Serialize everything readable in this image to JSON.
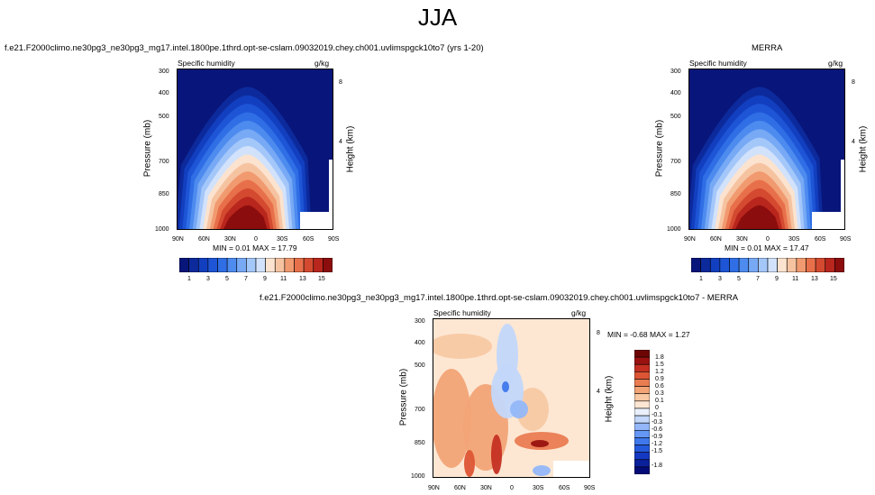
{
  "page": {
    "title": "JJA"
  },
  "colors": {
    "seq_palette": [
      "#08157a",
      "#0c2a9c",
      "#123fbf",
      "#1d55d6",
      "#2f6ee5",
      "#4d8bef",
      "#77a9f5",
      "#a4c7fa",
      "#d2e2fb",
      "#fbe3cf",
      "#f6c3a1",
      "#f19a70",
      "#e7704a",
      "#d44a30",
      "#b8261d",
      "#8c0d0d"
    ],
    "div_palette": [
      "#050c78",
      "#0b209b",
      "#1539c2",
      "#2559dc",
      "#3e78ec",
      "#6598f5",
      "#93b7f8",
      "#c3d7fa",
      "#e9f0fb",
      "#fde7d3",
      "#f8c9a4",
      "#f2a477",
      "#ea7c52",
      "#dd5534",
      "#c42f22",
      "#9a1210",
      "#6e0505"
    ]
  },
  "panels": [
    {
      "id": "model",
      "case_title": "f.e21.F2000climo.ne30pg3_ne30pg3_mg17.intel.1800pe.1thrd.opt-se-cslam.09032019.chey.ch001.uvlimspgck10to7 (yrs 1-20)",
      "field_label": "Specific humidity",
      "units": "g/kg",
      "stats": "MIN =  0.01   MAX =  17.79"
    },
    {
      "id": "obs",
      "case_title": "MERRA",
      "field_label": "Specific humidity",
      "units": "g/kg",
      "stats": "MIN =  0.01   MAX =  17.47"
    },
    {
      "id": "diff",
      "case_title": "f.e21.F2000climo.ne30pg3_ne30pg3_mg17.intel.1800pe.1thrd.opt-se-cslam.09032019.chey.ch001.uvlimspgck10to7 - MERRA",
      "field_label": "Specific humidity",
      "units": "g/kg",
      "stats": "MIN = -0.68   MAX =  1.27"
    }
  ],
  "chart_data": [
    {
      "type": "heatmap",
      "title": "Specific humidity (model, JJA)",
      "x": [
        "90N",
        "60N",
        "30N",
        "0",
        "30S",
        "60S",
        "90S"
      ],
      "y_left": {
        "label": "Pressure (mb)",
        "ticks": [
          "300",
          "400",
          "500",
          "700",
          "850",
          "1000"
        ]
      },
      "y_right": {
        "label": "Height (km)",
        "ticks": [
          "8",
          "4"
        ]
      },
      "units": "g/kg",
      "min": 0.01,
      "max": 17.79,
      "colorbar": [
        "1",
        "3",
        "5",
        "7",
        "9",
        "11",
        "13",
        "15"
      ]
    },
    {
      "type": "heatmap",
      "title": "Specific humidity (MERRA, JJA)",
      "x": [
        "90N",
        "60N",
        "30N",
        "0",
        "30S",
        "60S",
        "90S"
      ],
      "y_left": {
        "label": "Pressure (mb)",
        "ticks": [
          "300",
          "400",
          "500",
          "700",
          "850",
          "1000"
        ]
      },
      "y_right": {
        "label": "Height (km)",
        "ticks": [
          "8",
          "4"
        ]
      },
      "units": "g/kg",
      "min": 0.01,
      "max": 17.47,
      "colorbar": [
        "1",
        "3",
        "5",
        "7",
        "9",
        "11",
        "13",
        "15"
      ]
    },
    {
      "type": "heatmap",
      "title": "Specific humidity difference (model - MERRA, JJA)",
      "x": [
        "90N",
        "60N",
        "30N",
        "0",
        "30S",
        "60S",
        "90S"
      ],
      "y_left": {
        "label": "Pressure (mb)",
        "ticks": [
          "300",
          "400",
          "500",
          "700",
          "850",
          "1000"
        ]
      },
      "y_right": {
        "label": "Height (km)",
        "ticks": [
          "8",
          "4"
        ]
      },
      "units": "g/kg",
      "min": -0.68,
      "max": 1.27,
      "colorbar": [
        "1.8",
        "1.5",
        "1.2",
        "0.9",
        "0.6",
        "0.3",
        "0.1",
        "0",
        "-0.1",
        "-0.3",
        "-0.6",
        "-0.9",
        "-1.2",
        "-1.5",
        "-1.8"
      ]
    }
  ]
}
